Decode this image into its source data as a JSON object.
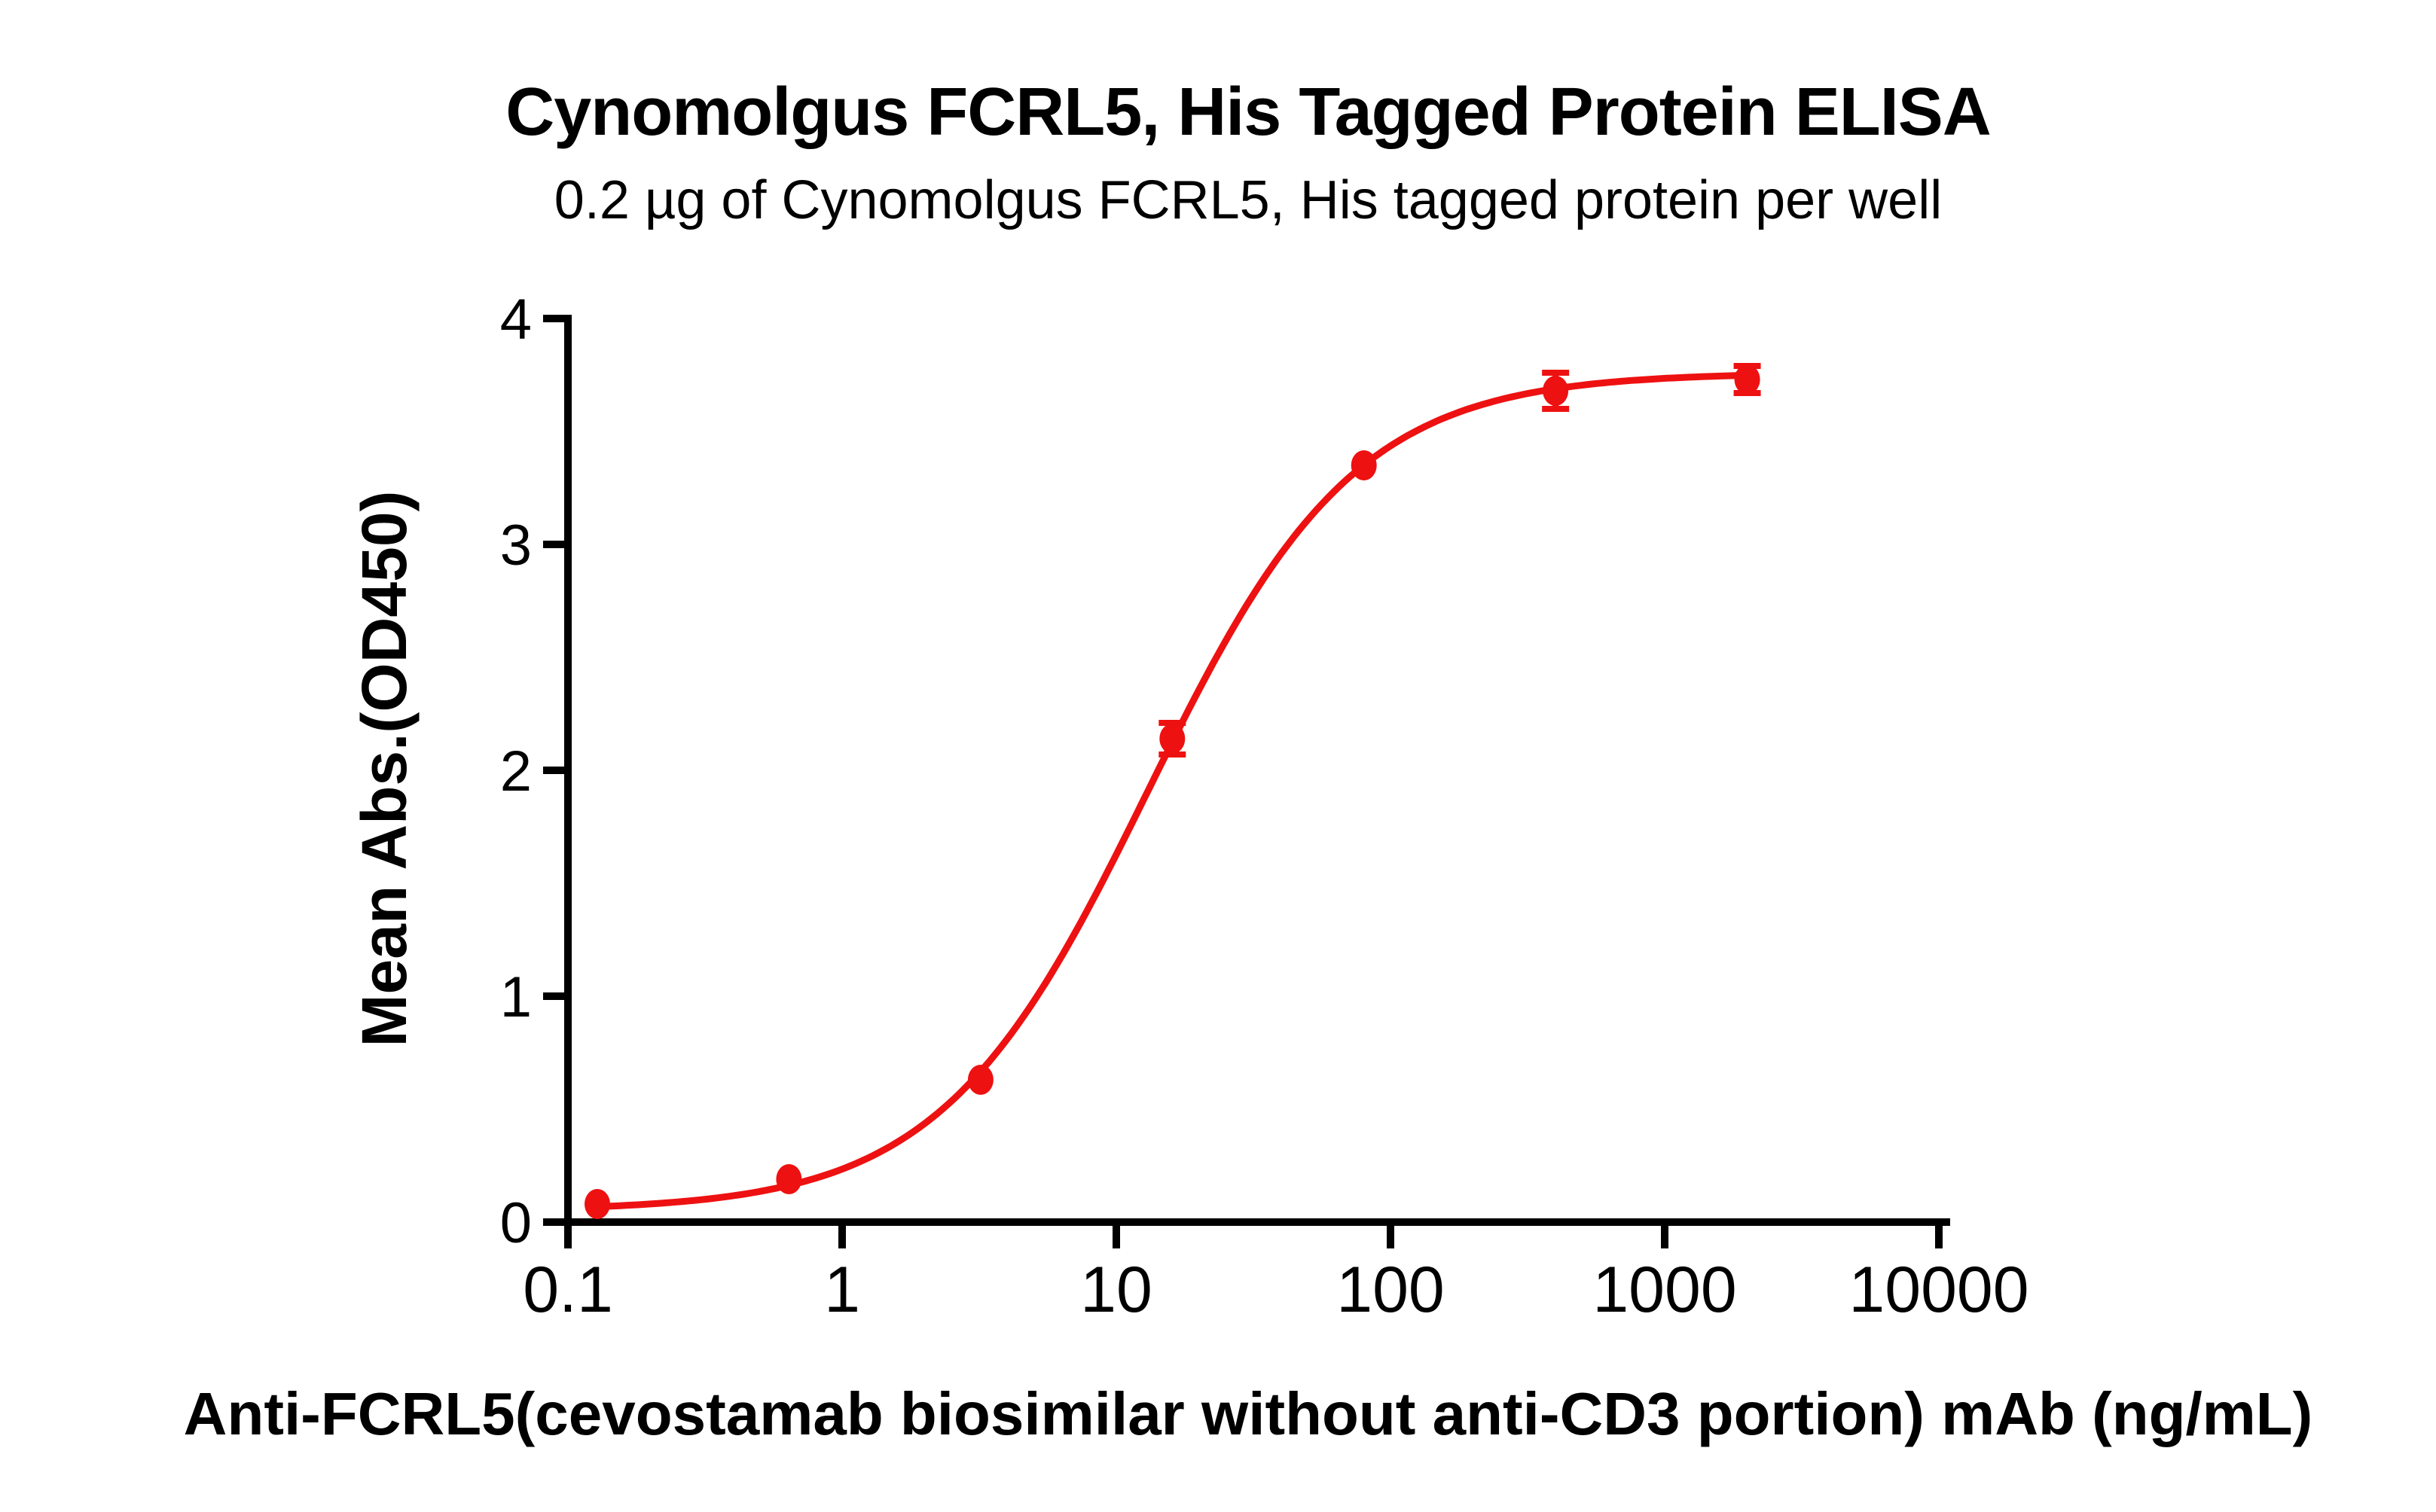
{
  "figure": {
    "background": "#FFFFFF",
    "text_color": "#000000"
  },
  "chart_data": {
    "type": "scatter",
    "title": "Cynomolgus FCRL5, His Tagged Protein ELISA",
    "subtitle": "0.2 µg of Cynomolgus FCRL5, His tagged protein per well",
    "xlabel": "Anti-FCRL5(cevostamab biosimilar without anti-CD3 portion) mAb (ng/mL)",
    "ylabel": "Mean Abs.(OD450)",
    "x_scale": "log10",
    "xlim": [
      0.1,
      10000
    ],
    "ylim": [
      0,
      4
    ],
    "x_tick_values": [
      0.1,
      1,
      10,
      100,
      1000,
      10000
    ],
    "x_tick_labels": [
      "0.1",
      "1",
      "10",
      "100",
      "1000",
      "10000"
    ],
    "y_tick_values": [
      0,
      1,
      2,
      3,
      4
    ],
    "y_tick_labels": [
      "0",
      "1",
      "2",
      "3",
      "4"
    ],
    "grid": false,
    "legend": "none",
    "series": [
      {
        "color": "#EE1111",
        "marker": "filled-circle",
        "x": [
          0.128,
          0.64,
          3.2,
          16,
          80,
          400,
          2000
        ],
        "y": [
          0.08,
          0.19,
          0.63,
          2.14,
          3.35,
          3.68,
          3.73
        ],
        "y_err": [
          0,
          0,
          0,
          0.07,
          0,
          0.08,
          0.06
        ],
        "fit_curve": {
          "model": "four-parameter-logistic",
          "bottom": 0.05,
          "top": 3.76,
          "ec50_ng_ml": 13,
          "hill": 1.15
        }
      }
    ]
  }
}
